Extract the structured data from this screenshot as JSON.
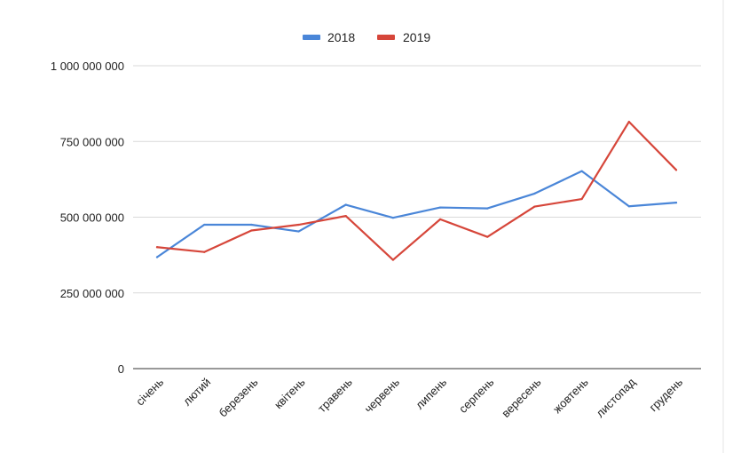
{
  "chart_data": {
    "type": "line",
    "title": "",
    "xlabel": "",
    "ylabel": "",
    "categories": [
      "січень",
      "лютий",
      "березень",
      "квітень",
      "травень",
      "червень",
      "липень",
      "серпень",
      "вересень",
      "жовтень",
      "листопад",
      "грудень"
    ],
    "series": [
      {
        "name": "2018",
        "color": "#4a86d8",
        "values": [
          368000000,
          475000000,
          475000000,
          453000000,
          541000000,
          498000000,
          532000000,
          529000000,
          578000000,
          652000000,
          536000000,
          548000000
        ]
      },
      {
        "name": "2019",
        "color": "#d6463a",
        "values": [
          401000000,
          385000000,
          456000000,
          475000000,
          504000000,
          359000000,
          493000000,
          435000000,
          535000000,
          560000000,
          815000000,
          656000000
        ]
      }
    ],
    "ylim": [
      0,
      1000000000
    ],
    "y_ticks": [
      0,
      250000000,
      500000000,
      750000000,
      1000000000
    ],
    "y_tick_labels": [
      "0",
      "250 000 000",
      "500 000 000",
      "750 000 000",
      "1 000 000 000"
    ],
    "grid": true,
    "legend_position": "top-center"
  }
}
